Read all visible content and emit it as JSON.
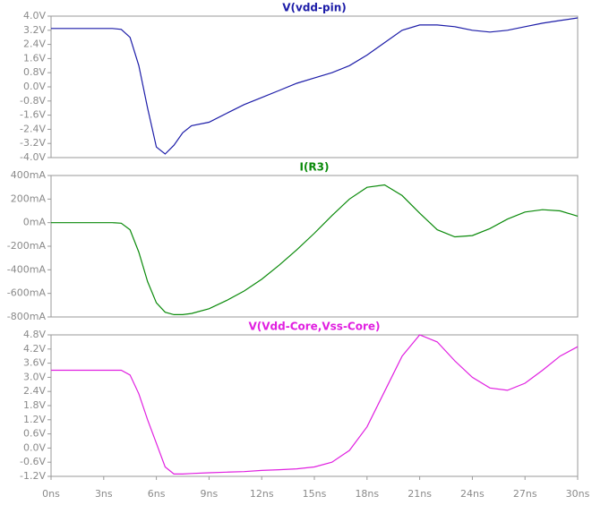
{
  "chart_data": [
    {
      "type": "line",
      "title": "V(vdd-pin)",
      "color": "#1c1ca8",
      "x": [
        0,
        1,
        2,
        3,
        3.5,
        4,
        4.5,
        5,
        5.5,
        6,
        6.5,
        7,
        7.5,
        8,
        9,
        10,
        11,
        12,
        13,
        14,
        15,
        16,
        17,
        18,
        19,
        20,
        21,
        22,
        23,
        24,
        25,
        26,
        27,
        28,
        29,
        30
      ],
      "values": [
        3.3,
        3.3,
        3.3,
        3.3,
        3.3,
        3.25,
        2.8,
        1.2,
        -1.2,
        -3.4,
        -3.8,
        -3.3,
        -2.6,
        -2.2,
        -2.0,
        -1.5,
        -1.0,
        -0.6,
        -0.2,
        0.2,
        0.5,
        0.8,
        1.2,
        1.8,
        2.5,
        3.2,
        3.5,
        3.5,
        3.4,
        3.2,
        3.1,
        3.2,
        3.4,
        3.6,
        3.75,
        3.9
      ],
      "xlim": [
        0,
        30
      ],
      "ylim": [
        -4,
        4
      ],
      "yticks": [
        {
          "value": 4,
          "label": "4.0V"
        },
        {
          "value": 3.2,
          "label": "3.2V"
        },
        {
          "value": 2.4,
          "label": "2.4V"
        },
        {
          "value": 1.6,
          "label": "1.6V"
        },
        {
          "value": 0.8,
          "label": "0.8V"
        },
        {
          "value": 0,
          "label": "0.0V"
        },
        {
          "value": -0.8,
          "label": "-0.8V"
        },
        {
          "value": -1.6,
          "label": "-1.6V"
        },
        {
          "value": -2.4,
          "label": "-2.4V"
        },
        {
          "value": -3.2,
          "label": "-3.2V"
        },
        {
          "value": -4,
          "label": "-4.0V"
        }
      ]
    },
    {
      "type": "line",
      "title": "I(R3)",
      "color": "#0a8a0a",
      "x": [
        0,
        1,
        2,
        3,
        3.5,
        4,
        4.5,
        5,
        5.5,
        6,
        6.5,
        7,
        7.5,
        8,
        9,
        10,
        11,
        12,
        13,
        14,
        15,
        16,
        17,
        18,
        19,
        20,
        21,
        22,
        23,
        24,
        25,
        26,
        27,
        28,
        29,
        30
      ],
      "values": [
        0,
        0,
        0,
        0,
        0,
        -5,
        -60,
        -250,
        -500,
        -680,
        -760,
        -780,
        -780,
        -770,
        -730,
        -660,
        -580,
        -480,
        -360,
        -230,
        -90,
        60,
        200,
        300,
        320,
        230,
        80,
        -60,
        -120,
        -110,
        -50,
        30,
        90,
        110,
        100,
        55
      ],
      "xlim": [
        0,
        30
      ],
      "ylim": [
        -800,
        400
      ],
      "yticks": [
        {
          "value": 400,
          "label": "400mA"
        },
        {
          "value": 200,
          "label": "200mA"
        },
        {
          "value": 0,
          "label": "0mA"
        },
        {
          "value": -200,
          "label": "-200mA"
        },
        {
          "value": -400,
          "label": "-400mA"
        },
        {
          "value": -600,
          "label": "-600mA"
        },
        {
          "value": -800,
          "label": "-800mA"
        }
      ]
    },
    {
      "type": "line",
      "title": "V(Vdd-Core,Vss-Core)",
      "color": "#e020e0",
      "x": [
        0,
        1,
        2,
        3,
        3.5,
        4,
        4.5,
        5,
        5.5,
        6,
        6.5,
        7,
        7.5,
        8,
        9,
        10,
        11,
        12,
        13,
        14,
        15,
        16,
        17,
        18,
        19,
        20,
        21,
        22,
        23,
        24,
        25,
        26,
        27,
        28,
        29,
        30
      ],
      "values": [
        3.3,
        3.3,
        3.3,
        3.3,
        3.3,
        3.3,
        3.1,
        2.3,
        1.2,
        0.2,
        -0.8,
        -1.1,
        -1.1,
        -1.08,
        -1.05,
        -1.02,
        -1.0,
        -0.95,
        -0.92,
        -0.88,
        -0.8,
        -0.6,
        -0.1,
        0.9,
        2.4,
        3.9,
        4.8,
        4.5,
        3.7,
        3.0,
        2.55,
        2.45,
        2.75,
        3.3,
        3.9,
        4.3
      ],
      "xlim": [
        0,
        30
      ],
      "ylim": [
        -1.2,
        4.8
      ],
      "yticks": [
        {
          "value": 4.8,
          "label": "4.8V"
        },
        {
          "value": 4.2,
          "label": "4.2V"
        },
        {
          "value": 3.6,
          "label": "3.6V"
        },
        {
          "value": 3.0,
          "label": "3.0V"
        },
        {
          "value": 2.4,
          "label": "2.4V"
        },
        {
          "value": 1.8,
          "label": "1.8V"
        },
        {
          "value": 1.2,
          "label": "1.2V"
        },
        {
          "value": 0.6,
          "label": "0.6V"
        },
        {
          "value": 0,
          "label": "0.0V"
        },
        {
          "value": -0.6,
          "label": "-0.6V"
        },
        {
          "value": -1.2,
          "label": "-1.2V"
        }
      ],
      "xticks": [
        {
          "value": 0,
          "label": "0ns"
        },
        {
          "value": 3,
          "label": "3ns"
        },
        {
          "value": 6,
          "label": "6ns"
        },
        {
          "value": 9,
          "label": "9ns"
        },
        {
          "value": 12,
          "label": "12ns"
        },
        {
          "value": 15,
          "label": "15ns"
        },
        {
          "value": 18,
          "label": "18ns"
        },
        {
          "value": 21,
          "label": "21ns"
        },
        {
          "value": 24,
          "label": "24ns"
        },
        {
          "value": 27,
          "label": "27ns"
        },
        {
          "value": 30,
          "label": "30ns"
        }
      ]
    }
  ]
}
